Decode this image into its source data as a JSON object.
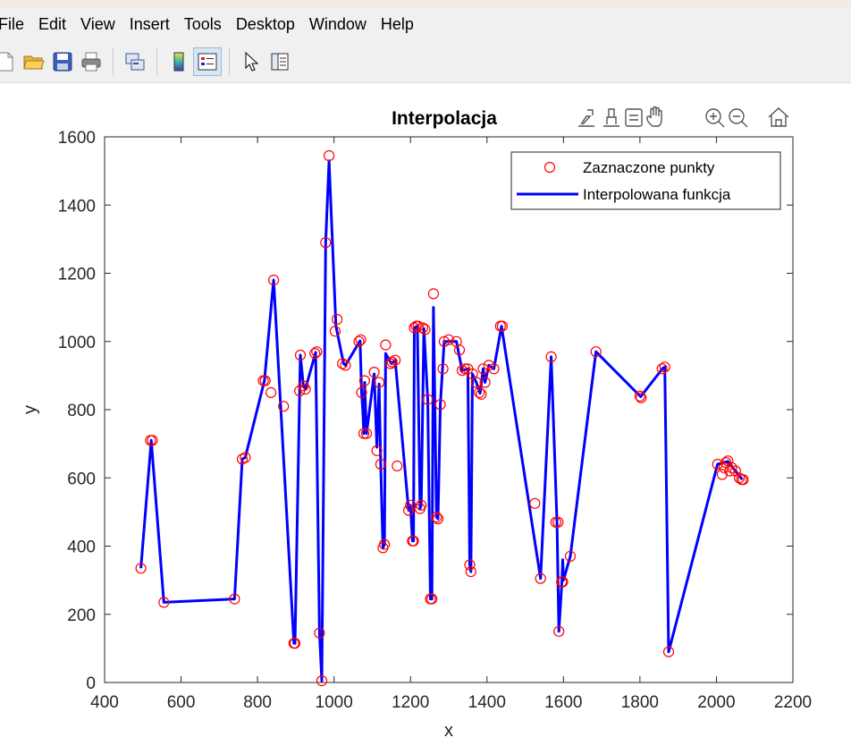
{
  "menu": [
    "File",
    "Edit",
    "View",
    "Insert",
    "Tools",
    "Desktop",
    "Window",
    "Help"
  ],
  "toolbar": {
    "buttons": [
      "new-file-icon",
      "open-folder-icon",
      "save-icon",
      "print-icon",
      "link-plot-icon",
      "colorbar-icon",
      "legend-icon",
      "pointer-icon",
      "property-inspector-icon"
    ]
  },
  "axes_toolbar": [
    "export-icon",
    "brush-icon",
    "data-tips-icon",
    "pan-hand-icon",
    "zoom-in-icon",
    "zoom-out-icon",
    "home-icon"
  ],
  "colors": {
    "points": "#ff0000",
    "line": "#0000ff"
  },
  "chart_data": {
    "type": "line",
    "title": "Interpolacja",
    "xlabel": "x",
    "ylabel": "y",
    "xlim": [
      400,
      2200
    ],
    "ylim": [
      0,
      1600
    ],
    "xticks": [
      "400",
      "600",
      "800",
      "1000",
      "1200",
      "1400",
      "1600",
      "1800",
      "2000",
      "2200"
    ],
    "yticks": [
      "0",
      "200",
      "400",
      "600",
      "800",
      "1000",
      "1200",
      "1400",
      "1600"
    ],
    "legend": {
      "position": "top-right",
      "entries": [
        "Zaznaczone punkty",
        "Interpolowana funkcja"
      ]
    },
    "series": [
      {
        "name": "Zaznaczone punkty",
        "style": "markers-circle",
        "color": "#ff0000",
        "points": [
          [
            495,
            335
          ],
          [
            520,
            710
          ],
          [
            525,
            710
          ],
          [
            555,
            235
          ],
          [
            740,
            245
          ],
          [
            760,
            655
          ],
          [
            768,
            660
          ],
          [
            815,
            885
          ],
          [
            820,
            885
          ],
          [
            835,
            850
          ],
          [
            842,
            1180
          ],
          [
            868,
            810
          ],
          [
            895,
            115
          ],
          [
            898,
            115
          ],
          [
            910,
            855
          ],
          [
            912,
            960
          ],
          [
            920,
            870
          ],
          [
            925,
            860
          ],
          [
            950,
            965
          ],
          [
            955,
            970
          ],
          [
            962,
            145
          ],
          [
            968,
            5
          ],
          [
            978,
            1290
          ],
          [
            987,
            1545
          ],
          [
            1003,
            1030
          ],
          [
            1008,
            1065
          ],
          [
            1022,
            935
          ],
          [
            1030,
            930
          ],
          [
            1065,
            1000
          ],
          [
            1070,
            1005
          ],
          [
            1072,
            850
          ],
          [
            1078,
            730
          ],
          [
            1080,
            885
          ],
          [
            1085,
            730
          ],
          [
            1105,
            910
          ],
          [
            1112,
            680
          ],
          [
            1118,
            880
          ],
          [
            1122,
            640
          ],
          [
            1128,
            395
          ],
          [
            1132,
            405
          ],
          [
            1135,
            990
          ],
          [
            1148,
            935
          ],
          [
            1152,
            940
          ],
          [
            1160,
            945
          ],
          [
            1165,
            635
          ],
          [
            1195,
            505
          ],
          [
            1200,
            520
          ],
          [
            1205,
            415
          ],
          [
            1208,
            415
          ],
          [
            1210,
            1040
          ],
          [
            1215,
            1045
          ],
          [
            1220,
            1045
          ],
          [
            1225,
            510
          ],
          [
            1228,
            520
          ],
          [
            1232,
            1040
          ],
          [
            1238,
            1035
          ],
          [
            1245,
            830
          ],
          [
            1252,
            245
          ],
          [
            1256,
            245
          ],
          [
            1260,
            1140
          ],
          [
            1268,
            485
          ],
          [
            1272,
            480
          ],
          [
            1278,
            815
          ],
          [
            1285,
            920
          ],
          [
            1288,
            1000
          ],
          [
            1300,
            1005
          ],
          [
            1320,
            1000
          ],
          [
            1328,
            975
          ],
          [
            1335,
            915
          ],
          [
            1342,
            920
          ],
          [
            1350,
            920
          ],
          [
            1355,
            345
          ],
          [
            1358,
            325
          ],
          [
            1362,
            905
          ],
          [
            1372,
            880
          ],
          [
            1380,
            850
          ],
          [
            1385,
            845
          ],
          [
            1390,
            920
          ],
          [
            1395,
            880
          ],
          [
            1405,
            930
          ],
          [
            1418,
            920
          ],
          [
            1435,
            1045
          ],
          [
            1440,
            1045
          ],
          [
            1525,
            525
          ],
          [
            1540,
            305
          ],
          [
            1568,
            955
          ],
          [
            1580,
            470
          ],
          [
            1586,
            470
          ],
          [
            1588,
            150
          ],
          [
            1595,
            295
          ],
          [
            1598,
            295
          ],
          [
            1618,
            370
          ],
          [
            1685,
            970
          ],
          [
            1800,
            840
          ],
          [
            1803,
            835
          ],
          [
            1858,
            920
          ],
          [
            1865,
            925
          ],
          [
            1875,
            90
          ],
          [
            2003,
            640
          ],
          [
            2015,
            610
          ],
          [
            2020,
            630
          ],
          [
            2025,
            645
          ],
          [
            2030,
            650
          ],
          [
            2035,
            620
          ],
          [
            2040,
            630
          ],
          [
            2050,
            620
          ],
          [
            2060,
            600
          ],
          [
            2066,
            595
          ],
          [
            2070,
            595
          ]
        ]
      },
      {
        "name": "Interpolowana funkcja",
        "style": "line",
        "color": "#0000ff",
        "points": [
          [
            495,
            335
          ],
          [
            522,
            710
          ],
          [
            555,
            235
          ],
          [
            740,
            245
          ],
          [
            760,
            655
          ],
          [
            768,
            660
          ],
          [
            818,
            885
          ],
          [
            842,
            1180
          ],
          [
            895,
            115
          ],
          [
            898,
            115
          ],
          [
            910,
            855
          ],
          [
            912,
            960
          ],
          [
            920,
            870
          ],
          [
            925,
            860
          ],
          [
            952,
            968
          ],
          [
            962,
            145
          ],
          [
            968,
            5
          ],
          [
            978,
            1290
          ],
          [
            987,
            1530
          ],
          [
            1005,
            1045
          ],
          [
            1025,
            935
          ],
          [
            1030,
            930
          ],
          [
            1068,
            1002
          ],
          [
            1072,
            850
          ],
          [
            1075,
            800
          ],
          [
            1078,
            730
          ],
          [
            1080,
            880
          ],
          [
            1085,
            730
          ],
          [
            1105,
            905
          ],
          [
            1112,
            690
          ],
          [
            1118,
            875
          ],
          [
            1122,
            640
          ],
          [
            1128,
            395
          ],
          [
            1132,
            405
          ],
          [
            1135,
            965
          ],
          [
            1150,
            935
          ],
          [
            1160,
            945
          ],
          [
            1195,
            505
          ],
          [
            1200,
            520
          ],
          [
            1205,
            415
          ],
          [
            1208,
            415
          ],
          [
            1210,
            1040
          ],
          [
            1218,
            1045
          ],
          [
            1225,
            510
          ],
          [
            1228,
            520
          ],
          [
            1235,
            1038
          ],
          [
            1245,
            830
          ],
          [
            1252,
            245
          ],
          [
            1256,
            245
          ],
          [
            1260,
            1100
          ],
          [
            1268,
            485
          ],
          [
            1272,
            480
          ],
          [
            1278,
            815
          ],
          [
            1288,
            1000
          ],
          [
            1320,
            1000
          ],
          [
            1335,
            915
          ],
          [
            1350,
            920
          ],
          [
            1355,
            345
          ],
          [
            1358,
            325
          ],
          [
            1362,
            905
          ],
          [
            1372,
            880
          ],
          [
            1382,
            848
          ],
          [
            1390,
            920
          ],
          [
            1395,
            880
          ],
          [
            1405,
            930
          ],
          [
            1418,
            920
          ],
          [
            1438,
            1045
          ],
          [
            1540,
            305
          ],
          [
            1568,
            955
          ],
          [
            1583,
            470
          ],
          [
            1588,
            150
          ],
          [
            1596,
            295
          ],
          [
            1598,
            360
          ],
          [
            1600,
            300
          ],
          [
            1618,
            370
          ],
          [
            1685,
            970
          ],
          [
            1802,
            838
          ],
          [
            1860,
            922
          ],
          [
            1865,
            925
          ],
          [
            1875,
            90
          ],
          [
            2003,
            640
          ],
          [
            2030,
            648
          ],
          [
            2050,
            620
          ],
          [
            2068,
            595
          ]
        ]
      }
    ]
  }
}
